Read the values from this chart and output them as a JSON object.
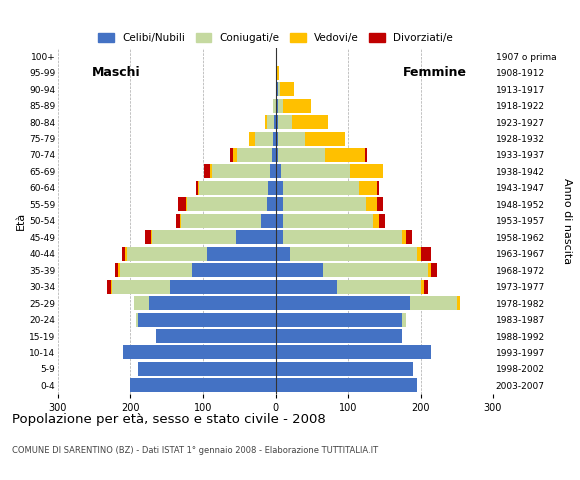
{
  "age_groups": [
    "0-4",
    "5-9",
    "10-14",
    "15-19",
    "20-24",
    "25-29",
    "30-34",
    "35-39",
    "40-44",
    "45-49",
    "50-54",
    "55-59",
    "60-64",
    "65-69",
    "70-74",
    "75-79",
    "80-84",
    "85-89",
    "90-94",
    "95-99",
    "100+"
  ],
  "birth_years": [
    "2003-2007",
    "1998-2002",
    "1993-1997",
    "1988-1992",
    "1983-1987",
    "1978-1982",
    "1973-1977",
    "1968-1972",
    "1963-1967",
    "1958-1962",
    "1953-1957",
    "1948-1952",
    "1943-1947",
    "1938-1942",
    "1933-1937",
    "1928-1932",
    "1923-1927",
    "1918-1922",
    "1913-1917",
    "1908-1912",
    "1907 o prima"
  ],
  "colors": {
    "celibinubili": "#4472c4",
    "coniugati": "#c5d9a0",
    "vedovi": "#ffc000",
    "divorziati": "#c00000"
  },
  "males": {
    "celibinubili": [
      200,
      190,
      210,
      165,
      190,
      175,
      145,
      115,
      95,
      55,
      20,
      12,
      10,
      8,
      5,
      3,
      2,
      0,
      0,
      0,
      0
    ],
    "coniugati": [
      0,
      0,
      0,
      0,
      3,
      20,
      80,
      100,
      110,
      115,
      110,
      110,
      95,
      80,
      48,
      25,
      10,
      3,
      0,
      0,
      0
    ],
    "vedovi": [
      0,
      0,
      0,
      0,
      0,
      0,
      2,
      2,
      2,
      2,
      2,
      2,
      2,
      3,
      5,
      8,
      3,
      0,
      0,
      0,
      0
    ],
    "divorziati": [
      0,
      0,
      0,
      0,
      0,
      0,
      5,
      5,
      5,
      8,
      5,
      10,
      3,
      8,
      5,
      0,
      0,
      0,
      0,
      0,
      0
    ]
  },
  "females": {
    "celibinubili": [
      195,
      190,
      215,
      175,
      175,
      185,
      85,
      65,
      20,
      10,
      10,
      10,
      10,
      8,
      3,
      3,
      3,
      3,
      3,
      0,
      0
    ],
    "coniugati": [
      0,
      0,
      0,
      0,
      5,
      65,
      115,
      145,
      175,
      165,
      125,
      115,
      105,
      95,
      65,
      38,
      20,
      8,
      3,
      0,
      0
    ],
    "vedovi": [
      0,
      0,
      0,
      0,
      0,
      5,
      5,
      5,
      5,
      5,
      8,
      15,
      25,
      45,
      55,
      55,
      50,
      38,
      20,
      5,
      0
    ],
    "divorziati": [
      0,
      0,
      0,
      0,
      0,
      0,
      5,
      8,
      15,
      8,
      8,
      8,
      3,
      0,
      3,
      0,
      0,
      0,
      0,
      0,
      0
    ]
  },
  "title": "Popolazione per età, sesso e stato civile - 2008",
  "subtitle": "COMUNE DI SARENTINO (BZ) - Dati ISTAT 1° gennaio 2008 - Elaborazione TUTTITALIA.IT",
  "xlabel_left": "Maschi",
  "xlabel_right": "Femmine",
  "ylabel_left": "Età",
  "ylabel_right": "Anno di nascita",
  "xlim": 300,
  "legend_labels": [
    "Celibi/Nubili",
    "Coniugati/e",
    "Vedovi/e",
    "Divorziati/e"
  ],
  "background_color": "#ffffff",
  "bar_height": 0.85
}
